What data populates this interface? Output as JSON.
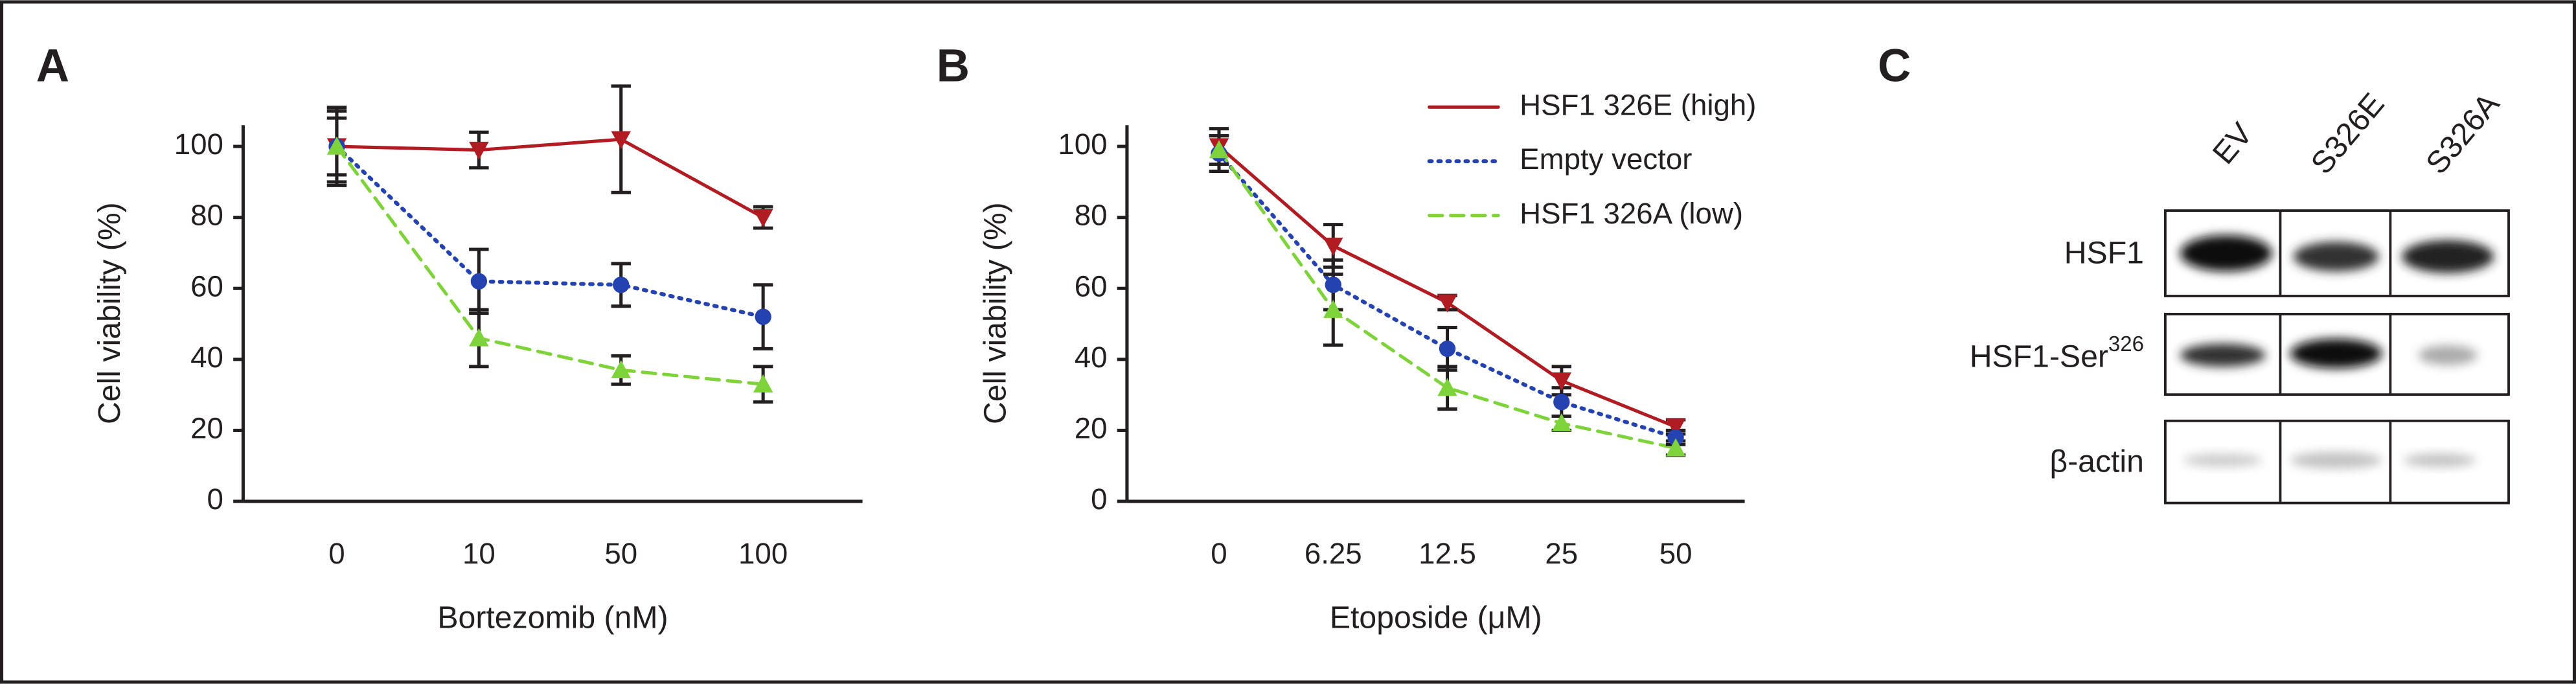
{
  "chart_data": [
    {
      "type": "line",
      "panel_label": "A",
      "xlabel": "Bortezomib (nM)",
      "ylabel": "Cell viability (%)",
      "categories": [
        "0",
        "10",
        "50",
        "100"
      ],
      "ylim": [
        0,
        106
      ],
      "yticks": [
        0,
        20,
        40,
        60,
        80,
        100
      ],
      "grid": false,
      "legend": "none",
      "series": [
        {
          "color": "#b01c22",
          "linestyle": "solid",
          "marker": "triangle-down",
          "values": [
            100,
            99,
            102,
            80
          ],
          "errors": [
            10,
            5,
            15,
            3
          ]
        },
        {
          "color": "#2443b0",
          "linestyle": "dotted",
          "marker": "circle",
          "values": [
            100,
            62,
            61,
            52
          ],
          "errors": [
            8,
            9,
            6,
            9
          ]
        },
        {
          "color": "#7ed23a",
          "linestyle": "dashed",
          "marker": "triangle-up",
          "values": [
            100,
            46,
            37,
            33
          ],
          "errors": [
            11,
            8,
            4,
            5
          ]
        }
      ]
    },
    {
      "type": "line",
      "panel_label": "B",
      "xlabel": "Etoposide (μM)",
      "ylabel": "Cell viability (%)",
      "categories": [
        "0",
        "6.25",
        "12.5",
        "25",
        "50"
      ],
      "ylim": [
        0,
        106
      ],
      "yticks": [
        0,
        20,
        40,
        60,
        80,
        100
      ],
      "grid": false,
      "legend": "upper right",
      "series": [
        {
          "name": "HSF1 326E (high)",
          "color": "#b01c22",
          "linestyle": "solid",
          "marker": "triangle-down",
          "values": [
            100,
            72,
            56,
            34,
            21
          ],
          "errors": [
            5,
            6,
            2,
            4,
            2
          ]
        },
        {
          "name": "Empty vector",
          "color": "#2443b0",
          "linestyle": "dotted",
          "marker": "circle",
          "values": [
            98,
            61,
            43,
            28,
            18
          ],
          "errors": [
            5,
            7,
            6,
            4,
            2
          ]
        },
        {
          "name": "HSF1 326A (low)",
          "color": "#7ed23a",
          "linestyle": "dashed",
          "marker": "triangle-up",
          "values": [
            99,
            54,
            32,
            22,
            15
          ],
          "errors": [
            4,
            10,
            6,
            2,
            2
          ]
        }
      ]
    }
  ],
  "blot": {
    "panel_label": "C",
    "lanes": [
      "EV",
      "S326E",
      "S326A"
    ],
    "rows": [
      {
        "label": "HSF1"
      },
      {
        "label": "HSF1-Ser",
        "superscript": "326"
      },
      {
        "label": "β-actin"
      }
    ]
  }
}
